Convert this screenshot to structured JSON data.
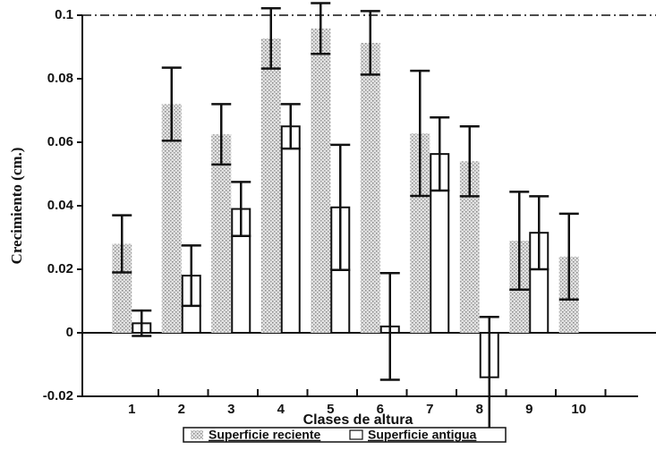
{
  "chart_data": {
    "type": "bar",
    "x_label": "Clases de altura",
    "y_label": "Crecimiento (cm.)",
    "categories": [
      "1",
      "2",
      "3",
      "4",
      "5",
      "6",
      "7",
      "8",
      "9",
      "10"
    ],
    "series": [
      {
        "name": "Superficie reciente",
        "color": "#bdbdbd",
        "values": [
          0.028,
          0.072,
          0.0625,
          0.0927,
          0.0958,
          0.0913,
          0.0628,
          0.054,
          0.029,
          0.024
        ],
        "errors": [
          0.009,
          0.0115,
          0.0095,
          0.0095,
          0.008,
          0.01,
          0.0197,
          0.011,
          0.0154,
          0.0135
        ]
      },
      {
        "name": "Superficie antigua",
        "color": "#ffffff",
        "values": [
          0.003,
          0.018,
          0.039,
          0.065,
          0.0395,
          0.002,
          0.0563,
          -0.014,
          0.0315,
          null
        ],
        "errors": [
          0.004,
          0.0095,
          0.0085,
          0.007,
          0.0197,
          0.0168,
          0.0115,
          0.019,
          0.0115,
          null
        ]
      }
    ],
    "ylim": [
      -0.02,
      0.1
    ],
    "yticks": [
      -0.02,
      0,
      0.02,
      0.04,
      0.06,
      0.08,
      0.1
    ],
    "legend": "bottom"
  }
}
